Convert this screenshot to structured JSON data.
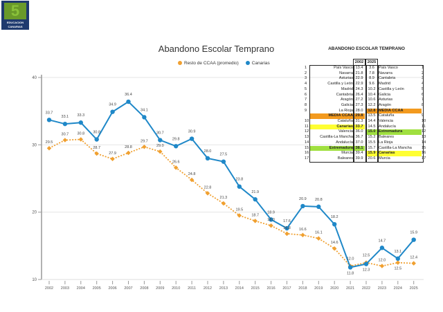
{
  "logo": {
    "number": "5",
    "text_line1": "EDUCACION",
    "text_line2": "CANARIAS"
  },
  "chart_data": {
    "type": "line",
    "title": "Abandono Escolar Temprano",
    "x": [
      "2002",
      "2003",
      "2004",
      "2005",
      "2006",
      "2007",
      "2008",
      "2009",
      "2010",
      "2011",
      "2012",
      "2013",
      "2014",
      "2015",
      "2016",
      "2017",
      "2018",
      "2019",
      "2020",
      "2021",
      "2022",
      "2023",
      "2024",
      "2025"
    ],
    "series": [
      {
        "name": "Resto de CCAA (promedio)",
        "color": "#f0a030",
        "style": "dotted",
        "values": [
          29.5,
          30.7,
          30.8,
          28.7,
          27.9,
          28.8,
          29.7,
          29.0,
          26.6,
          24.8,
          22.8,
          21.3,
          19.5,
          18.7,
          18.0,
          16.8,
          16.6,
          16.1,
          14.6,
          12.0,
          12.5,
          12.0,
          12.5,
          12.4
        ]
      },
      {
        "name": "Canarias",
        "color": "#1f88c8",
        "style": "solid",
        "values": [
          33.7,
          33.1,
          33.3,
          30.8,
          34.9,
          36.4,
          34.1,
          30.7,
          29.8,
          30.9,
          28.0,
          27.5,
          23.8,
          21.9,
          18.9,
          17.6,
          20.9,
          20.8,
          18.2,
          11.8,
          12.3,
          14.7,
          13.1,
          15.9
        ]
      }
    ],
    "yticks": [
      "10",
      "20",
      "30",
      "40"
    ],
    "ylim": [
      10,
      40
    ],
    "legend": "top",
    "grid": true
  },
  "table": {
    "title": "ABANDONO ESCOLAR TEMPRANO",
    "headers": [
      "2002",
      "2025"
    ],
    "rows": [
      {
        "n": "1",
        "a": "País Vasco",
        "v1": "13.4",
        "v2": "3.6",
        "b": "País Vasco",
        "n2": "1",
        "hl": "",
        "hr": ""
      },
      {
        "n": "2",
        "a": "Navarra",
        "v1": "21.8",
        "v2": "7.8",
        "b": "Navarra",
        "n2": "2",
        "hl": "",
        "hr": ""
      },
      {
        "n": "3",
        "a": "Asturias",
        "v1": "22.9",
        "v2": "8.9",
        "b": "Cantabria",
        "n2": "3",
        "hl": "",
        "hr": ""
      },
      {
        "n": "4",
        "a": "Castilla y León",
        "v1": "22.9",
        "v2": "9.6",
        "b": "Madrid",
        "n2": "4",
        "hl": "",
        "hr": ""
      },
      {
        "n": "5",
        "a": "Madrid",
        "v1": "24.3",
        "v2": "10.2",
        "b": "Castilla y León",
        "n2": "5",
        "hl": "",
        "hr": ""
      },
      {
        "n": "6",
        "a": "Cantabria",
        "v1": "26.4",
        "v2": "10.4",
        "b": "Galicia",
        "n2": "6",
        "hl": "",
        "hr": ""
      },
      {
        "n": "7",
        "a": "Aragón",
        "v1": "27.2",
        "v2": "10.6",
        "b": "Asturias",
        "n2": "7",
        "hl": "",
        "hr": ""
      },
      {
        "n": "8",
        "a": "Galicia",
        "v1": "27.3",
        "v2": "12.2",
        "b": "Aragón",
        "n2": "8",
        "hl": "",
        "hr": ""
      },
      {
        "n": "9",
        "a": "La Rioja",
        "v1": "28.0",
        "v2": "12.8",
        "b": "MEDIA CCAA",
        "n2": "",
        "hl": "",
        "hr": "#f39a1e"
      },
      {
        "n": "",
        "a": "MEDIA CCAA",
        "v1": "29.8",
        "v2": "13.5",
        "b": "Cataluña",
        "n2": "9",
        "hl": "#f39a1e",
        "hr": ""
      },
      {
        "n": "10",
        "a": "Cataluña",
        "v1": "31.3",
        "v2": "14.4",
        "b": "Valencia",
        "n2": "10",
        "hl": "",
        "hr": ""
      },
      {
        "n": "11",
        "a": "Canarias",
        "v1": "33.7",
        "v2": "14.5",
        "b": "Andalucía",
        "n2": "11",
        "hl": "#ffff33",
        "hr": ""
      },
      {
        "n": "12",
        "a": "Valencia",
        "v1": "36.0",
        "v2": "15.0",
        "b": "Extremadura",
        "n2": "12",
        "hl": "",
        "hr": "#a0e040"
      },
      {
        "n": "13",
        "a": "Castilla-La Mancha",
        "v1": "36.7",
        "v2": "15.2",
        "b": "Baleares",
        "n2": "13",
        "hl": "",
        "hr": ""
      },
      {
        "n": "14",
        "a": "Andalucía",
        "v1": "37.0",
        "v2": "15.5",
        "b": "La Rioja",
        "n2": "14",
        "hl": "",
        "hr": ""
      },
      {
        "n": "15",
        "a": "Extremadura",
        "v1": "38.1",
        "v2": "15.7",
        "b": "Castilla-La Mancha",
        "n2": "15",
        "hl": "#a0e040",
        "hr": ""
      },
      {
        "n": "16",
        "a": "Murcia",
        "v1": "39.4",
        "v2": "15.9",
        "b": "Canarias",
        "n2": "16",
        "hl": "",
        "hr": "#ffff33"
      },
      {
        "n": "17",
        "a": "Baleares",
        "v1": "39.9",
        "v2": "20.6",
        "b": "Murcia",
        "n2": "17",
        "hl": "",
        "hr": ""
      }
    ]
  }
}
